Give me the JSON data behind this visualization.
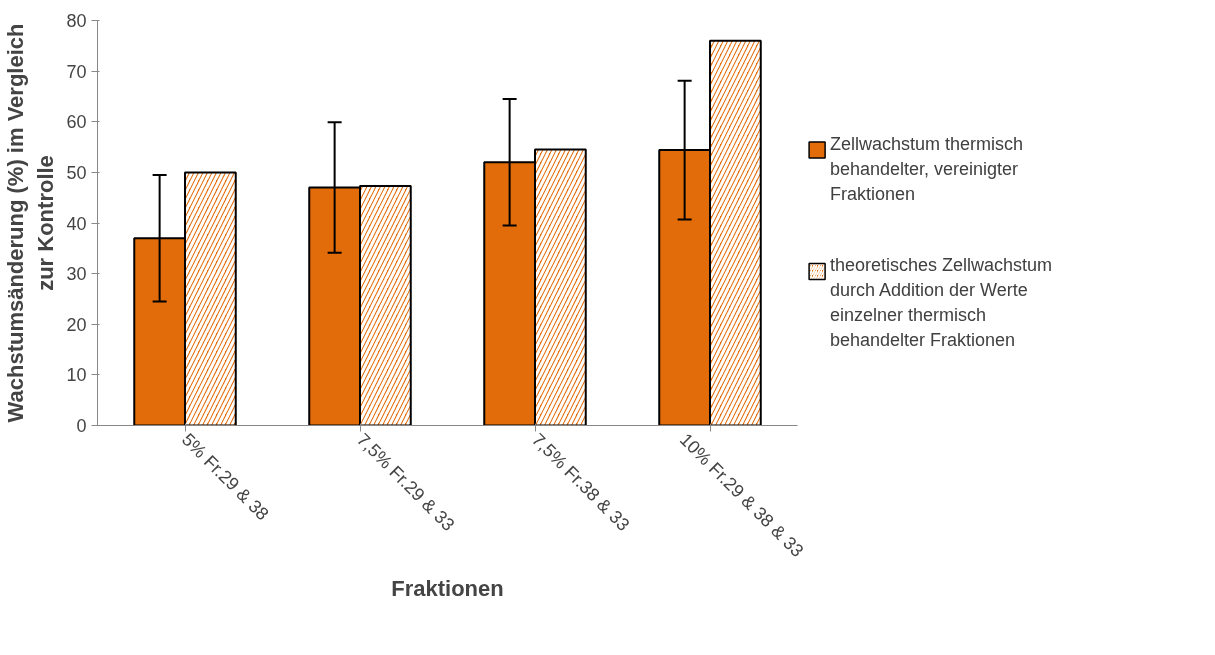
{
  "chart_data": {
    "type": "bar",
    "xlabel": "Fraktionen",
    "ylabel": "Wachstumsänderung (%) im Vergleich zur Kontrolle",
    "categories": [
      "5% Fr.29 & 38",
      "7,5% Fr.29 & 33",
      "7,5% Fr.38 & 33",
      "10% Fr.29 & 38 & 33"
    ],
    "series": [
      {
        "name": "Zellwachstum thermisch behandelter, vereinigter Fraktionen",
        "color": "#e36c0a",
        "values": [
          37,
          47,
          52,
          54.4
        ],
        "errors": [
          12.5,
          12.9,
          12.5,
          13.7
        ]
      },
      {
        "name": "theoretisches Zellwachstum durch Addition der Werte einzelner thermisch behandelter Fraktionen",
        "color": "#e36c0a",
        "values": [
          50,
          47.3,
          54.5,
          76
        ]
      }
    ],
    "ylim": [
      0,
      80
    ],
    "yticks": [
      0,
      10,
      20,
      30,
      40,
      50,
      60,
      70,
      80
    ],
    "grid": false,
    "legend": "right"
  }
}
